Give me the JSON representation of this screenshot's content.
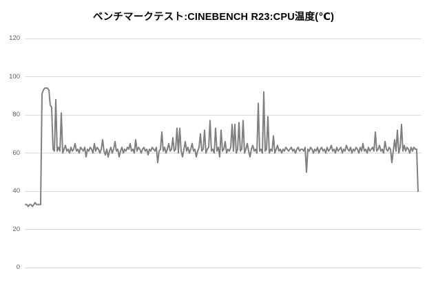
{
  "chart_data": {
    "type": "line",
    "title": "ベンチマークテスト:CINEBENCH R23:CPU温度(℃)",
    "xlabel": "",
    "ylabel": "",
    "ylim": [
      0,
      120
    ],
    "y_ticks": [
      0,
      20,
      40,
      60,
      80,
      100,
      120
    ],
    "x_axis_labels": "none",
    "grid": "horizontal",
    "legend": "none",
    "series": [
      {
        "name": "CPU温度",
        "color": "#7f7f7f",
        "values": [
          33,
          33,
          32,
          33,
          33,
          32,
          33,
          34,
          33,
          33,
          33,
          33,
          91,
          93,
          94,
          94,
          94,
          93,
          85,
          84,
          62,
          61,
          88,
          61,
          63,
          61,
          81,
          60,
          62,
          64,
          61,
          62,
          60,
          63,
          61,
          62,
          65,
          61,
          62,
          60,
          63,
          62,
          61,
          63,
          58,
          62,
          61,
          63,
          62,
          60,
          65,
          61,
          63,
          62,
          60,
          62,
          67,
          61,
          59,
          62,
          58,
          61,
          63,
          60,
          62,
          66,
          61,
          62,
          58,
          61,
          63,
          60,
          62,
          61,
          63,
          62,
          65,
          61,
          62,
          60,
          67,
          61,
          63,
          62,
          60,
          62,
          63,
          61,
          62,
          59,
          62,
          61,
          63,
          62,
          61,
          63,
          55,
          61,
          62,
          71,
          61,
          63,
          60,
          62,
          65,
          61,
          62,
          68,
          61,
          62,
          73,
          60,
          73,
          61,
          58,
          62,
          66,
          61,
          63,
          60,
          62,
          65,
          61,
          62,
          58,
          61,
          63,
          70,
          61,
          62,
          72,
          60,
          62,
          63,
          77,
          61,
          62,
          60,
          73,
          61,
          63,
          58,
          72,
          61,
          62,
          66,
          60,
          62,
          61,
          63,
          75,
          61,
          75,
          60,
          62,
          76,
          61,
          62,
          77,
          60,
          62,
          65,
          61,
          58,
          62,
          64,
          61,
          62,
          60,
          86,
          61,
          62,
          60,
          92,
          61,
          62,
          79,
          60,
          62,
          61,
          69,
          60,
          62,
          64,
          61,
          62,
          60,
          62,
          61,
          63,
          62,
          61,
          62,
          63,
          61,
          62,
          60,
          62,
          63,
          61,
          62,
          62,
          61,
          63,
          50,
          62,
          61,
          63,
          62,
          60,
          62,
          61,
          63,
          60,
          62,
          63,
          61,
          62,
          60,
          63,
          61,
          62,
          64,
          61,
          62,
          60,
          63,
          61,
          62,
          63,
          60,
          62,
          61,
          64,
          62,
          61,
          63,
          60,
          62,
          61,
          63,
          62,
          60,
          63,
          61,
          65,
          61,
          62,
          60,
          63,
          61,
          62,
          63,
          61,
          71,
          61,
          62,
          64,
          61,
          62,
          60,
          66,
          62,
          61,
          63,
          62,
          55,
          61,
          67,
          61,
          72,
          60,
          63,
          75,
          61,
          64,
          61,
          63,
          62,
          60,
          63,
          61,
          63,
          62,
          62,
          40
        ]
      }
    ]
  },
  "colors": {
    "line": "#7f7f7f",
    "gridline": "#d9d9d9",
    "tick_label": "#595959",
    "title": "#000000",
    "background": "#ffffff"
  }
}
